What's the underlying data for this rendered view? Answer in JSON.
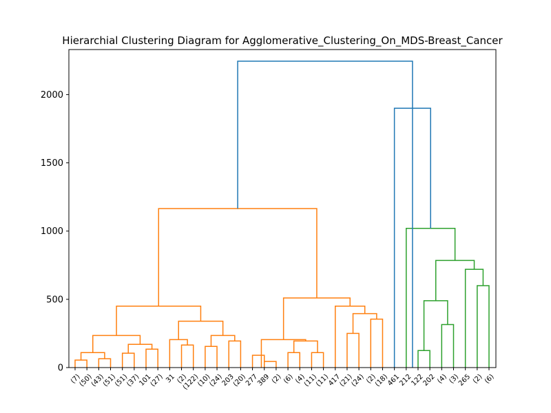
{
  "chart_data": {
    "type": "dendrogram",
    "title": "Hierarchial Clustering Diagram for Agglomerative_Clustering_On_MDS-Breast_Cancer",
    "xlabel": "",
    "ylabel": "",
    "ylim": [
      0,
      2330
    ],
    "yticks": [
      0,
      500,
      1000,
      1500,
      2000
    ],
    "grid": false,
    "colors": {
      "cluster1": "#ff7f0e",
      "cluster2": "#2ca02c",
      "root": "#1f77b4"
    },
    "leaves": [
      "(7)",
      "(50)",
      "(43)",
      "(51)",
      "(51)",
      "(37)",
      "101",
      "(27)",
      "31",
      "(2)",
      "(122)",
      "(10)",
      "(24)",
      "203",
      "(20)",
      "277",
      "389",
      "(2)",
      "(6)",
      "(4)",
      "(11)",
      "(11)",
      "417",
      "(21)",
      "(24)",
      "(2)",
      "(18)",
      "461",
      "212",
      "122",
      "202",
      "(4)",
      "(3)",
      "265",
      "(2)",
      "(6)"
    ],
    "links": [
      {
        "a": 0,
        "b": 1,
        "height": 55,
        "color": "cluster1"
      },
      {
        "a": 2,
        "b": 3,
        "height": 65,
        "color": "cluster1"
      },
      {
        "a": 4,
        "b": 5,
        "height": 105,
        "color": "cluster1"
      },
      {
        "a": 6,
        "b": 7,
        "height": 135,
        "color": "cluster1"
      },
      {
        "a": 9,
        "b": 10,
        "height": 165,
        "color": "cluster1"
      },
      {
        "a": 11,
        "b": 12,
        "height": 155,
        "color": "cluster1"
      },
      {
        "a": 13,
        "b": 14,
        "height": 195,
        "color": "cluster1"
      },
      {
        "a": 15,
        "b": 16,
        "height": 90,
        "color": "cluster1"
      },
      {
        "a": 16,
        "b": 17,
        "height": 45,
        "color": "cluster1"
      },
      {
        "a": 18,
        "b": 19,
        "height": 110,
        "color": "cluster1"
      },
      {
        "a": 20,
        "b": 21,
        "height": 110,
        "color": "cluster1"
      },
      {
        "a": 23,
        "b": 24,
        "height": 250,
        "color": "cluster1"
      },
      {
        "a": 25,
        "b": 26,
        "height": 355,
        "color": "cluster1"
      },
      {
        "a": 0.5,
        "b": 2.5,
        "height": 110,
        "color": "cluster1"
      },
      {
        "a": 4.5,
        "b": 6.5,
        "height": 170,
        "color": "cluster1"
      },
      {
        "a": 1.5,
        "b": 5.5,
        "height": 235,
        "color": "cluster1"
      },
      {
        "a": 8,
        "b": 9.5,
        "height": 205,
        "color": "cluster1"
      },
      {
        "a": 11.5,
        "b": 13.5,
        "height": 235,
        "color": "cluster1"
      },
      {
        "a": 8.75,
        "b": 12.5,
        "height": 340,
        "color": "cluster1"
      },
      {
        "a": 3.5,
        "b": 10.625,
        "height": 450,
        "color": "cluster1"
      },
      {
        "a": 18.5,
        "b": 20.5,
        "height": 195,
        "color": "cluster1"
      },
      {
        "a": 15.75,
        "b": 19.5,
        "height": 205,
        "color": "cluster1"
      },
      {
        "a": 23.5,
        "b": 25.5,
        "height": 395,
        "color": "cluster1"
      },
      {
        "a": 22,
        "b": 24.5,
        "height": 450,
        "color": "cluster1"
      },
      {
        "a": 17.625,
        "b": 23.25,
        "height": 510,
        "color": "cluster1"
      },
      {
        "a": 7.0625,
        "b": 20.4375,
        "height": 1165,
        "color": "cluster1"
      },
      {
        "a": 29,
        "b": 30,
        "height": 125,
        "color": "cluster2"
      },
      {
        "a": 31,
        "b": 32,
        "height": 315,
        "color": "cluster2"
      },
      {
        "a": 29.5,
        "b": 31.5,
        "height": 490,
        "color": "cluster2"
      },
      {
        "a": 34,
        "b": 35,
        "height": 600,
        "color": "cluster2"
      },
      {
        "a": 33,
        "b": 34.5,
        "height": 720,
        "color": "cluster2"
      },
      {
        "a": 30.5,
        "b": 33.75,
        "height": 785,
        "color": "cluster2"
      },
      {
        "a": 28,
        "b": 32.125,
        "height": 1020,
        "color": "cluster2"
      },
      {
        "a": 27,
        "b": 30.0625,
        "height": 1900,
        "color": "root"
      },
      {
        "a": 13.75,
        "b": 28.53,
        "height": 2245,
        "color": "root"
      }
    ]
  }
}
